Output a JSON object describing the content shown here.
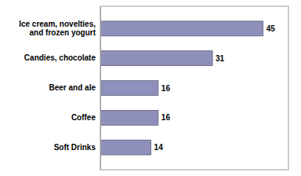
{
  "chart_data": {
    "type": "bar",
    "orientation": "horizontal",
    "categories": [
      "Soft Drinks",
      "Coffee",
      "Beer and ale",
      "Candies, chocolate",
      "Ice cream, novelties,\nand frozen yogurt"
    ],
    "values": [
      14,
      16,
      16,
      31,
      45
    ],
    "color": "#8f8fbc",
    "xlim": [
      0,
      52
    ],
    "data_labels": true,
    "tick_labels": "y"
  }
}
